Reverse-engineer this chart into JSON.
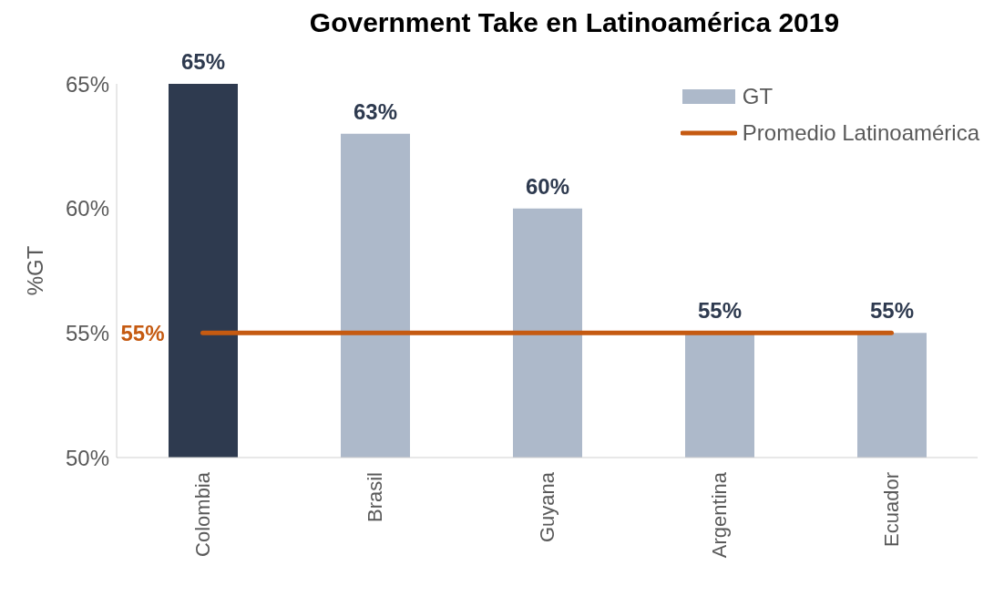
{
  "chart_data": {
    "type": "bar",
    "title": "Government Take en Latinoamérica 2019",
    "ylabel": "%GT",
    "categories": [
      "Colombia",
      "Brasil",
      "Guyana",
      "Argentina",
      "Ecuador"
    ],
    "series": [
      {
        "name": "GT",
        "color": "#adb9ca",
        "colors": [
          "#2e3a4f",
          "#adb9ca",
          "#adb9ca",
          "#adb9ca",
          "#adb9ca"
        ],
        "values": [
          65,
          63,
          60,
          55,
          55
        ],
        "value_labels": [
          "65%",
          "63%",
          "60%",
          "55%",
          "55%"
        ]
      },
      {
        "name": "Promedio Latinoamérica",
        "type": "line",
        "color": "#c55a11",
        "values": [
          55,
          55,
          55,
          55,
          55
        ],
        "value_labels": [
          "55%",
          null,
          null,
          null,
          null
        ]
      }
    ],
    "ylim": [
      50,
      65
    ],
    "yticks": [
      {
        "value": 50,
        "label": "50%"
      },
      {
        "value": 55,
        "label": "55%"
      },
      {
        "value": 60,
        "label": "60%"
      },
      {
        "value": 65,
        "label": "65%"
      }
    ],
    "grid": false,
    "legend": "top right",
    "marker": "none",
    "line_style": "solid"
  }
}
